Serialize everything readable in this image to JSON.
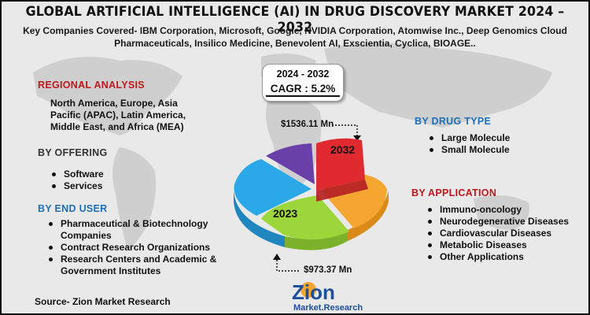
{
  "title": "GLOBAL ARTIFICIAL INTELLIGENCE (AI) IN DRUG DISCOVERY MARKET 2024 – 2032",
  "subtitle": "Key Companies Covered- IBM Corporation, Microsoft, Google, NVIDIA Corporation, Atomwise Inc., Deep Genomics Cloud Pharmaceuticals, Insilico Medicine, Benevolent AI, Exscientia, Cyclica, BIOAGE..",
  "regional": {
    "heading": "REGIONAL ANALYSIS",
    "text": "North America, Europe, Asia Pacific (APAC), Latin America, Middle East, and Africa (MEA)"
  },
  "offering": {
    "heading": "BY OFFERING",
    "items": [
      "Software",
      "Services"
    ]
  },
  "end_user": {
    "heading": "BY END USER",
    "items": [
      "Pharmaceutical & Biotechnology Companies",
      "Contract Research Organizations",
      "Research Centers and Academic & Government Institutes"
    ]
  },
  "cagr": {
    "years": "2024 - 2032",
    "value": "CAGR : 5.2%"
  },
  "drug_type": {
    "heading": "BY DRUG TYPE",
    "items": [
      "Large Molecule",
      "Small Molecule"
    ]
  },
  "application": {
    "heading": "BY APPLICATION",
    "items": [
      "Immuno-oncology",
      "Neurodegenerative Diseases",
      "Cardiovascular Diseases",
      "Metabolic Diseases",
      "Other Applications"
    ]
  },
  "pie": {
    "label_2032": "2032",
    "label_2023": "2023",
    "value_2032": "$1536.11 Mn",
    "value_2023": "$973.37 Mn",
    "colors": [
      "#e02a2f",
      "#f4a630",
      "#9bd63a",
      "#2aa8e8",
      "#6a3fa8"
    ]
  },
  "logo": {
    "name": "Zion",
    "tagline": "Market.Research"
  },
  "source": "Source- Zion Market Research"
}
